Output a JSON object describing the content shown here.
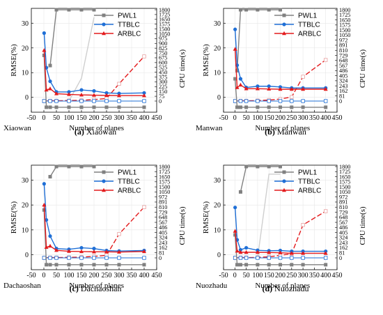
{
  "figure": {
    "panels": [
      {
        "letter": "(a)",
        "caption": "Xiaowan",
        "site_label": "Xiaowan"
      },
      {
        "letter": "(b)",
        "caption": "Manwan",
        "site_label": "Manwan"
      },
      {
        "letter": "(c)",
        "caption": "Dachaoshan",
        "site_label": "Dachaoshan"
      },
      {
        "letter": "(d)",
        "caption": "Nuozhadu",
        "site_label": "Nuozhadu"
      }
    ]
  },
  "colors": {
    "PWL1": "#808080",
    "TTBLC": "#1f6fd6",
    "ARBLC": "#e31a1c",
    "PWL1_light": "#cfcfcf"
  },
  "chart_data": [
    {
      "type": "line",
      "caption": "Xiaowan",
      "xlabel": "Number of planes",
      "ylabel_left": "RMSE(%)",
      "ylabel_right": "CPU time(s)",
      "xlim": [
        -50,
        450
      ],
      "xticks": [
        "-50",
        "0",
        "50",
        "100",
        "150",
        "200",
        "250",
        "300",
        "350",
        "400",
        "450"
      ],
      "ylim_left": [
        -6,
        36
      ],
      "yticks_left": [
        "0",
        "10",
        "20",
        "30"
      ],
      "right_ticks": [
        "0",
        "75",
        "150",
        "225",
        "300",
        "375",
        "450",
        "525",
        "600",
        "675",
        "750",
        "825",
        "900",
        "975",
        "1050",
        "1500",
        "1575",
        "1650",
        "1725",
        "1800"
      ],
      "legend": [
        "PWL1",
        "TTBLC",
        "ARBLC"
      ],
      "x": [
        1,
        10,
        25,
        50,
        100,
        150,
        200,
        250,
        300,
        400
      ],
      "rmse": [
        {
          "name": "PWL1",
          "values": [
            17,
            -4,
            -4,
            -4,
            -4,
            -4,
            -4,
            -4,
            -4,
            -4
          ]
        },
        {
          "name": "TTBLC",
          "values": [
            26,
            12,
            6.5,
            2.2,
            2.2,
            3,
            2.6,
            1.8,
            1.6,
            1.8
          ]
        },
        {
          "name": "ARBLC",
          "values": [
            19,
            3,
            3.5,
            1.5,
            1.2,
            1,
            0.9,
            0.8,
            0.7,
            0.7
          ]
        }
      ],
      "cpu_time": [
        {
          "name": "PWL1",
          "x": [
            25,
            50,
            100,
            150,
            200
          ],
          "values": [
            700,
            1800,
            1800,
            1800,
            1800
          ]
        },
        {
          "name": "PWL1 (light)",
          "x": [
            100,
            150,
            200
          ],
          "values": [
            0,
            450,
            1650
          ]
        },
        {
          "name": "ARBLC",
          "x": [
            1,
            25,
            50,
            100,
            150,
            200,
            250,
            300,
            400
          ],
          "values": [
            0,
            5,
            5,
            10,
            15,
            30,
            50,
            340,
            880
          ]
        },
        {
          "name": "TTBLC",
          "x": [
            1,
            25,
            50,
            100,
            150,
            200,
            250,
            300,
            400
          ],
          "values": [
            0,
            0,
            0,
            0,
            0,
            0,
            0,
            0,
            0
          ]
        }
      ]
    },
    {
      "type": "line",
      "caption": "Manwan",
      "xlabel": "Number of planes",
      "ylabel_left": "RMSE(%)",
      "ylabel_right": "CPU time(s)",
      "xlim": [
        -50,
        450
      ],
      "xticks": [
        "-50",
        "0",
        "50",
        "100",
        "150",
        "200",
        "250",
        "300",
        "350",
        "400",
        "450"
      ],
      "ylim_left": [
        -6,
        36
      ],
      "yticks_left": [
        "0",
        "10",
        "20",
        "30"
      ],
      "right_ticks": [
        "0",
        "81",
        "162",
        "243",
        "324",
        "405",
        "486",
        "567",
        "648",
        "729",
        "810",
        "891",
        "972",
        "1050",
        "1500",
        "1575",
        "1650",
        "1725",
        "1800"
      ],
      "legend": [
        "PWL1",
        "TTBLC",
        "ARBLC"
      ],
      "x": [
        1,
        10,
        25,
        50,
        100,
        150,
        200,
        250,
        300,
        400
      ],
      "rmse": [
        {
          "name": "PWL1",
          "values": [
            7.5,
            -4,
            -4,
            -4,
            -4,
            -4,
            -4,
            -4,
            -4,
            -4
          ]
        },
        {
          "name": "TTBLC",
          "values": [
            27.5,
            13,
            7.5,
            4,
            4.5,
            4.5,
            4.2,
            3.8,
            3.8,
            3.8
          ]
        },
        {
          "name": "ARBLC",
          "values": [
            19.5,
            4,
            5,
            3.5,
            3.5,
            3.4,
            3.3,
            3.3,
            3.3,
            3.3
          ]
        }
      ],
      "cpu_time": [
        {
          "name": "PWL1",
          "x": [
            10,
            25,
            50,
            100,
            150,
            200
          ],
          "values": [
            600,
            1800,
            1800,
            1800,
            1800,
            1800
          ]
        },
        {
          "name": "ARBLC",
          "x": [
            1,
            25,
            50,
            100,
            150,
            200,
            250,
            300,
            400
          ],
          "values": [
            0,
            5,
            5,
            10,
            20,
            40,
            80,
            480,
            810
          ]
        },
        {
          "name": "TTBLC",
          "x": [
            1,
            25,
            50,
            100,
            150,
            200,
            250,
            300,
            400
          ],
          "values": [
            0,
            0,
            0,
            0,
            0,
            0,
            0,
            0,
            0
          ]
        }
      ]
    },
    {
      "type": "line",
      "caption": "Dachaoshan",
      "xlabel": "Number of planes",
      "ylabel_left": "RMSE(%)",
      "ylabel_right": "CPU time(s)",
      "xlim": [
        -50,
        450
      ],
      "xticks": [
        "-50",
        "0",
        "50",
        "100",
        "150",
        "200",
        "250",
        "300",
        "350",
        "400",
        "450"
      ],
      "ylim_left": [
        -6,
        36
      ],
      "yticks_left": [
        "0",
        "10",
        "20",
        "30"
      ],
      "right_ticks": [
        "0",
        "81",
        "162",
        "243",
        "324",
        "405",
        "486",
        "567",
        "648",
        "729",
        "810",
        "891",
        "972",
        "1050",
        "1500",
        "1575",
        "1650",
        "1725",
        "1800"
      ],
      "legend": [
        "PWL1",
        "TTBLC",
        "ARBLC"
      ],
      "x": [
        1,
        10,
        25,
        50,
        100,
        150,
        200,
        250,
        300,
        400
      ],
      "rmse": [
        {
          "name": "PWL1",
          "values": [
            18,
            -4,
            -4,
            -4,
            -4,
            -4,
            -4,
            -4,
            -4,
            -4
          ]
        },
        {
          "name": "TTBLC",
          "values": [
            28.5,
            14,
            7.5,
            2.5,
            2.2,
            2.8,
            2.5,
            1.7,
            1.5,
            1.7
          ]
        },
        {
          "name": "ARBLC",
          "values": [
            20,
            3,
            3.5,
            1.8,
            1.4,
            1.3,
            1.2,
            1.2,
            1.1,
            1.3
          ]
        }
      ],
      "cpu_time": [
        {
          "name": "PWL1",
          "x": [
            25,
            50,
            100,
            150,
            200
          ],
          "values": [
            1600,
            1800,
            1800,
            1800,
            1800
          ]
        },
        {
          "name": "ARBLC",
          "x": [
            1,
            25,
            50,
            100,
            150,
            200,
            250,
            300,
            400
          ],
          "values": [
            0,
            5,
            5,
            10,
            15,
            30,
            50,
            470,
            1000
          ]
        },
        {
          "name": "TTBLC",
          "x": [
            1,
            25,
            50,
            100,
            150,
            200,
            250,
            300,
            400
          ],
          "values": [
            0,
            0,
            0,
            0,
            0,
            0,
            0,
            0,
            0
          ]
        }
      ]
    },
    {
      "type": "line",
      "caption": "Nuozhadu",
      "xlabel": "Number of planes",
      "ylabel_left": "RMSE(%)",
      "ylabel_right": "CPU time(s)",
      "xlim": [
        -50,
        450
      ],
      "xticks": [
        "-50",
        "0",
        "50",
        "100",
        "150",
        "200",
        "250",
        "300",
        "350",
        "400",
        "450"
      ],
      "ylim_left": [
        -6,
        36
      ],
      "yticks_left": [
        "0",
        "10",
        "20",
        "30"
      ],
      "right_ticks": [
        "0",
        "81",
        "162",
        "243",
        "324",
        "405",
        "486",
        "567",
        "648",
        "729",
        "810",
        "891",
        "972",
        "1050",
        "1500",
        "1575",
        "1650",
        "1725",
        "1800"
      ],
      "legend": [
        "PWL1",
        "TTBLC",
        "ARBLC"
      ],
      "x": [
        1,
        10,
        25,
        50,
        100,
        150,
        200,
        250,
        300,
        400
      ],
      "rmse": [
        {
          "name": "PWL1",
          "values": [
            8,
            -4,
            -4,
            -4,
            -4,
            -4,
            -4,
            -4,
            -4,
            -4
          ]
        },
        {
          "name": "TTBLC",
          "values": [
            19,
            6,
            2,
            2.8,
            1.8,
            1.6,
            1.7,
            1.4,
            1.4,
            1.4
          ]
        },
        {
          "name": "ARBLC",
          "values": [
            9.5,
            1.5,
            1,
            1,
            1,
            0.9,
            0.8,
            0.6,
            0.6,
            0.6
          ]
        }
      ],
      "cpu_time": [
        {
          "name": "PWL1",
          "x": [
            25,
            50,
            100,
            150,
            200
          ],
          "values": [
            1300,
            1800,
            1800,
            1800,
            1800
          ]
        },
        {
          "name": "PWL1 (light)",
          "x": [
            100,
            150,
            200
          ],
          "values": [
            0,
            1650,
            1650
          ]
        },
        {
          "name": "ARBLC",
          "x": [
            1,
            25,
            50,
            100,
            150,
            200,
            250,
            300,
            400
          ],
          "values": [
            0,
            5,
            5,
            10,
            20,
            50,
            80,
            650,
            920
          ]
        },
        {
          "name": "TTBLC",
          "x": [
            1,
            25,
            50,
            100,
            150,
            200,
            250,
            300,
            400
          ],
          "values": [
            0,
            0,
            0,
            0,
            0,
            0,
            0,
            0,
            0
          ]
        }
      ]
    }
  ]
}
